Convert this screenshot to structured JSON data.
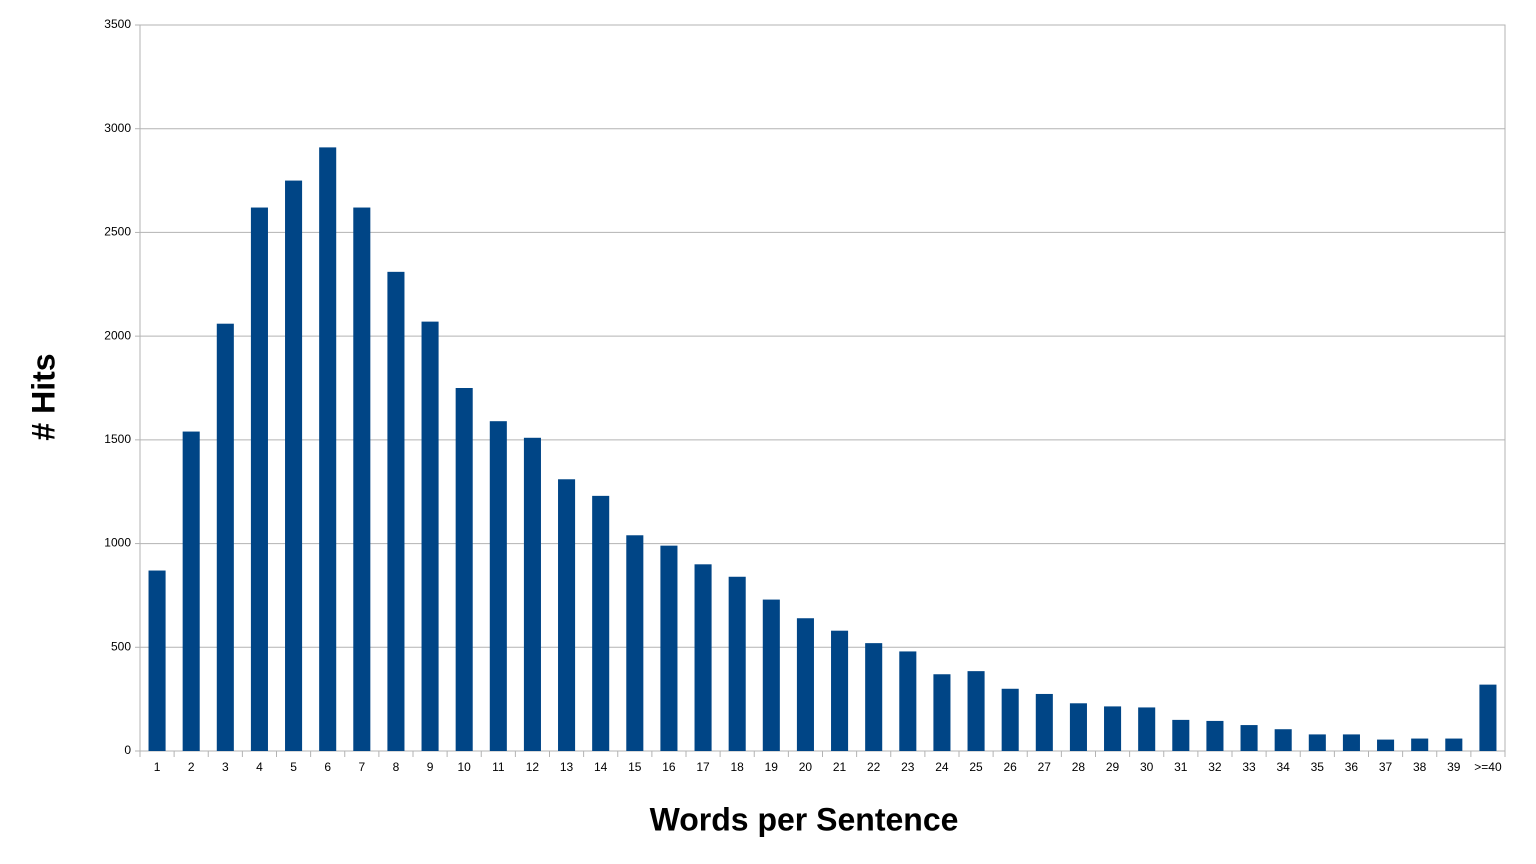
{
  "chart_data": {
    "type": "bar",
    "x_label": "Words per Sentence",
    "y_label": "# Hits",
    "categories": [
      "1",
      "2",
      "3",
      "4",
      "5",
      "6",
      "7",
      "8",
      "9",
      "10",
      "11",
      "12",
      "13",
      "14",
      "15",
      "16",
      "17",
      "18",
      "19",
      "20",
      "21",
      "22",
      "23",
      "24",
      "25",
      "26",
      "27",
      "28",
      "29",
      "30",
      "31",
      "32",
      "33",
      "34",
      "35",
      "36",
      "37",
      "38",
      "39",
      ">=40"
    ],
    "values": [
      870,
      1540,
      2060,
      2620,
      2750,
      2910,
      2620,
      2310,
      2070,
      1750,
      1590,
      1510,
      1310,
      1230,
      1040,
      990,
      900,
      840,
      730,
      640,
      580,
      520,
      480,
      370,
      385,
      300,
      275,
      230,
      215,
      210,
      150,
      145,
      125,
      105,
      80,
      80,
      55,
      60,
      60,
      320
    ],
    "color": "#004586",
    "ylim": [
      0,
      3500
    ],
    "yticks": [
      0,
      500,
      1000,
      1500,
      2000,
      2500,
      3000,
      3500
    ],
    "grid": true
  }
}
